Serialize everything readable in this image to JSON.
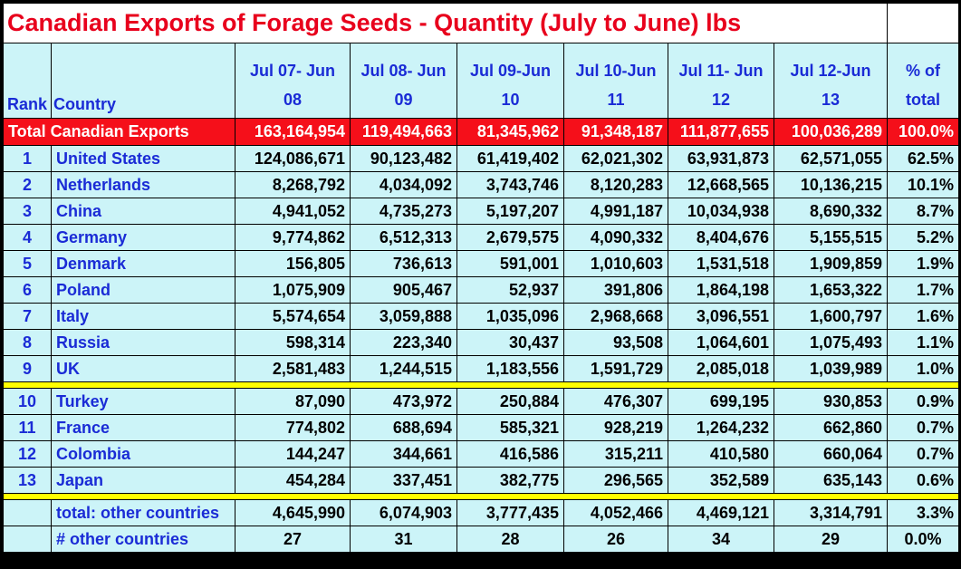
{
  "chart_data": {
    "type": "table",
    "title": "Canadian Exports of Forage Seeds - Quantity (July to June) lbs",
    "headers": {
      "rank": "Rank",
      "country": "Country",
      "periods": [
        [
          "Jul 07- Jun",
          "08"
        ],
        [
          "Jul 08- Jun",
          "09"
        ],
        [
          "Jul 09-Jun",
          "10"
        ],
        [
          "Jul 10-Jun",
          "11"
        ],
        [
          "Jul 11- Jun",
          "12"
        ],
        [
          "Jul 12-Jun",
          "13"
        ]
      ],
      "pct": [
        "% of",
        "total"
      ]
    },
    "total_row": {
      "label": "Total Canadian Exports",
      "values": [
        "163,164,954",
        "119,494,663",
        "81,345,962",
        "91,348,187",
        "111,877,655",
        "100,036,289"
      ],
      "pct": "100.0%"
    },
    "rows_top": [
      {
        "rank": "1",
        "country": "United States",
        "values": [
          "124,086,671",
          "90,123,482",
          "61,419,402",
          "62,021,302",
          "63,931,873",
          "62,571,055"
        ],
        "pct": "62.5%"
      },
      {
        "rank": "2",
        "country": "Netherlands",
        "values": [
          "8,268,792",
          "4,034,092",
          "3,743,746",
          "8,120,283",
          "12,668,565",
          "10,136,215"
        ],
        "pct": "10.1%"
      },
      {
        "rank": "3",
        "country": "China",
        "values": [
          "4,941,052",
          "4,735,273",
          "5,197,207",
          "4,991,187",
          "10,034,938",
          "8,690,332"
        ],
        "pct": "8.7%"
      },
      {
        "rank": "4",
        "country": "Germany",
        "values": [
          "9,774,862",
          "6,512,313",
          "2,679,575",
          "4,090,332",
          "8,404,676",
          "5,155,515"
        ],
        "pct": "5.2%"
      },
      {
        "rank": "5",
        "country": "Denmark",
        "values": [
          "156,805",
          "736,613",
          "591,001",
          "1,010,603",
          "1,531,518",
          "1,909,859"
        ],
        "pct": "1.9%"
      },
      {
        "rank": "6",
        "country": "Poland",
        "values": [
          "1,075,909",
          "905,467",
          "52,937",
          "391,806",
          "1,864,198",
          "1,653,322"
        ],
        "pct": "1.7%"
      },
      {
        "rank": "7",
        "country": "Italy",
        "values": [
          "5,574,654",
          "3,059,888",
          "1,035,096",
          "2,968,668",
          "3,096,551",
          "1,600,797"
        ],
        "pct": "1.6%"
      },
      {
        "rank": "8",
        "country": "Russia",
        "values": [
          "598,314",
          "223,340",
          "30,437",
          "93,508",
          "1,064,601",
          "1,075,493"
        ],
        "pct": "1.1%"
      },
      {
        "rank": "9",
        "country": "UK",
        "values": [
          "2,581,483",
          "1,244,515",
          "1,183,556",
          "1,591,729",
          "2,085,018",
          "1,039,989"
        ],
        "pct": "1.0%"
      }
    ],
    "rows_mid": [
      {
        "rank": "10",
        "country": "Turkey",
        "values": [
          "87,090",
          "473,972",
          "250,884",
          "476,307",
          "699,195",
          "930,853"
        ],
        "pct": "0.9%"
      },
      {
        "rank": "11",
        "country": "France",
        "values": [
          "774,802",
          "688,694",
          "585,321",
          "928,219",
          "1,264,232",
          "662,860"
        ],
        "pct": "0.7%"
      },
      {
        "rank": "12",
        "country": "Colombia",
        "values": [
          "144,247",
          "344,661",
          "416,586",
          "315,211",
          "410,580",
          "660,064"
        ],
        "pct": "0.7%"
      },
      {
        "rank": "13",
        "country": "Japan",
        "values": [
          "454,284",
          "337,451",
          "382,775",
          "296,565",
          "352,589",
          "635,143"
        ],
        "pct": "0.6%"
      }
    ],
    "rows_bottom": [
      {
        "rank": "",
        "country": "total: other countries",
        "values": [
          "4,645,990",
          "6,074,903",
          "3,777,435",
          "4,052,466",
          "4,469,121",
          "3,314,791"
        ],
        "pct": "3.3%",
        "kind": "other"
      },
      {
        "rank": "",
        "country": "# other countries",
        "values": [
          "27",
          "31",
          "28",
          "26",
          "34",
          "29"
        ],
        "pct": "0.0%",
        "kind": "count"
      }
    ]
  },
  "colors": {
    "title": "#e8001c",
    "header_text": "#1a2bd6",
    "cell_bg": "#ccf4f8",
    "total_bg": "#f50f1a",
    "separator": "#ffff00"
  }
}
